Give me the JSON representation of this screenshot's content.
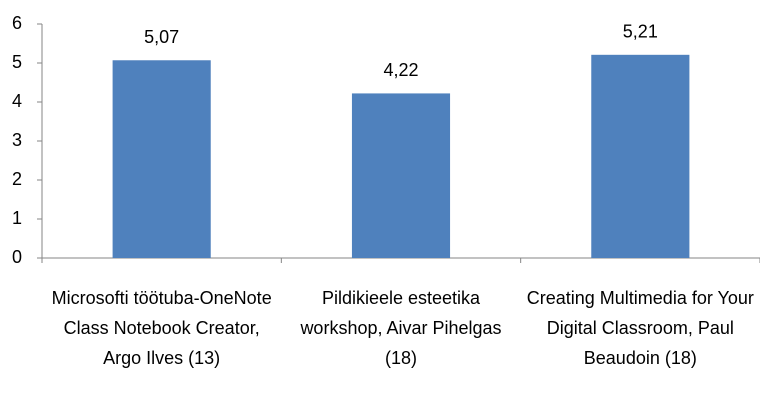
{
  "chart_data": {
    "type": "bar",
    "categories": [
      "Microsofti töötuba-OneNote Class Notebook Creator, Argo Ilves (13)",
      "Pildikieele esteetika workshop, Aivar Pihelgas (18)",
      "Creating Multimedia for Your Digital Classroom, Paul Beaudoin (18)"
    ],
    "values": [
      5.07,
      4.22,
      5.21
    ],
    "value_labels": [
      "5,07",
      "4,22",
      "5,21"
    ],
    "color": "#4f81bd",
    "ylim": [
      0,
      6
    ],
    "yticks": [
      0,
      1,
      2,
      3,
      4,
      5,
      6
    ],
    "grid": false
  }
}
